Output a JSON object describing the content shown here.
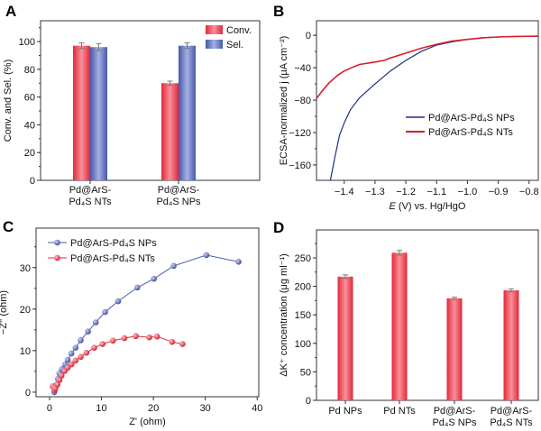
{
  "chart_data": [
    {
      "panel": "A",
      "type": "bar",
      "ylabel": "Conv. and Sel. (%)",
      "categories": [
        "Pd@ArS-\nPd₄S NTs",
        "Pd@ArS-\nPd₄S NPs"
      ],
      "series": [
        {
          "name": "Conv.",
          "values": [
            97,
            70
          ],
          "errors": [
            2,
            1.5
          ],
          "color": "#e8303f"
        },
        {
          "name": "Sel.",
          "values": [
            96,
            97
          ],
          "errors": [
            2.5,
            2
          ],
          "color": "#5566b5"
        }
      ],
      "ylim": [
        0,
        115
      ],
      "yticks": [
        0,
        20,
        40,
        60,
        80,
        100
      ],
      "legend": "top-right"
    },
    {
      "panel": "B",
      "type": "line",
      "xlabel_italic": "E",
      "xlabel": " (V) vs. Hg/HgO",
      "ylabel": "ECSA-normalized j (μA cm⁻²)",
      "xlim": [
        -1.49,
        -0.77
      ],
      "ylim": [
        -179,
        18
      ],
      "xticks": [
        -1.4,
        -1.3,
        -1.2,
        -1.1,
        -1.0,
        -0.9,
        -0.8
      ],
      "yticks": [
        0,
        -40,
        -80,
        -120,
        -160
      ],
      "legend": "bottom-right",
      "series": [
        {
          "name": "Pd@ArS-Pd₄S NPs",
          "color": "#1f2f80",
          "x": [
            -1.445,
            -1.43,
            -1.415,
            -1.4,
            -1.38,
            -1.35,
            -1.3,
            -1.25,
            -1.2,
            -1.15,
            -1.1,
            -1.05,
            -1.0,
            -0.95,
            -0.9,
            -0.85,
            -0.77
          ],
          "y": [
            -179,
            -150,
            -123,
            -108,
            -92,
            -77,
            -60,
            -44,
            -31,
            -20,
            -12,
            -8,
            -5,
            -3,
            -2,
            -1.5,
            -1
          ]
        },
        {
          "name": "Pd@ArS-Pd₄S NTs",
          "color": "#d81e2c",
          "x": [
            -1.49,
            -1.47,
            -1.45,
            -1.42,
            -1.4,
            -1.37,
            -1.35,
            -1.3,
            -1.27,
            -1.25,
            -1.2,
            -1.15,
            -1.1,
            -1.05,
            -1.0,
            -0.95,
            -0.9,
            -0.85,
            -0.77
          ],
          "y": [
            -78,
            -68,
            -59,
            -49,
            -44,
            -39,
            -36,
            -33,
            -31,
            -28,
            -22,
            -16,
            -11,
            -7,
            -5,
            -3,
            -2,
            -1.5,
            -1
          ]
        }
      ]
    },
    {
      "panel": "C",
      "type": "scatter",
      "xlabel": "Z' (ohm)",
      "ylabel": "−Z'' (ohm)",
      "xlim": [
        -2.6,
        40.3
      ],
      "ylim": [
        -1.1,
        39.5
      ],
      "xticks": [
        0,
        10,
        20,
        30,
        40
      ],
      "yticks": [
        0,
        10,
        20,
        30
      ],
      "legend": "top-left",
      "series": [
        {
          "name": "Pd@ArS-Pd₄S NPs",
          "color": "#4a5aa8",
          "x": [
            0.9,
            1.0,
            1.3,
            1.6,
            1.9,
            2.4,
            3.0,
            3.5,
            4.2,
            5.0,
            6.0,
            7.4,
            8.9,
            10.7,
            13.2,
            16.9,
            20.1,
            23.9,
            30.2,
            36.4
          ],
          "y": [
            0.0,
            0.6,
            1.8,
            3.2,
            4.5,
            5.6,
            6.7,
            7.8,
            9.3,
            10.7,
            12.5,
            14.6,
            16.8,
            19.3,
            21.9,
            25.2,
            27.3,
            30.4,
            33.0,
            31.4
          ]
        },
        {
          "name": "Pd@ArS-Pd₄S NTs",
          "color": "#e02a3a",
          "x": [
            0.6,
            0.9,
            1.1,
            1.5,
            1.9,
            2.3,
            2.9,
            3.5,
            4.2,
            5.0,
            6.0,
            7.1,
            8.6,
            10.2,
            12.2,
            14.4,
            16.6,
            19.2,
            20.7,
            23.6,
            25.6
          ],
          "y": [
            1.4,
            0.5,
            0.9,
            1.8,
            2.9,
            4.0,
            5.1,
            5.9,
            6.7,
            7.6,
            8.5,
            9.5,
            10.7,
            11.6,
            12.4,
            13.0,
            13.5,
            13.2,
            13.4,
            12.1,
            11.6
          ]
        }
      ]
    },
    {
      "panel": "D",
      "type": "bar",
      "ylabel": "ΔK⁺ concentration (μg ml⁻¹)",
      "categories": [
        "Pd NPs",
        "Pd NTs",
        "Pd@ArS-\nPd₄S NPs",
        "Pd@ArS-\nPd₄S NTs"
      ],
      "values": [
        217,
        259,
        179,
        193
      ],
      "errors": [
        3,
        4,
        2,
        2.5
      ],
      "color": "#e8303f",
      "ylim": [
        0,
        299
      ],
      "yticks": [
        0,
        50,
        100,
        150,
        200,
        250
      ]
    }
  ]
}
